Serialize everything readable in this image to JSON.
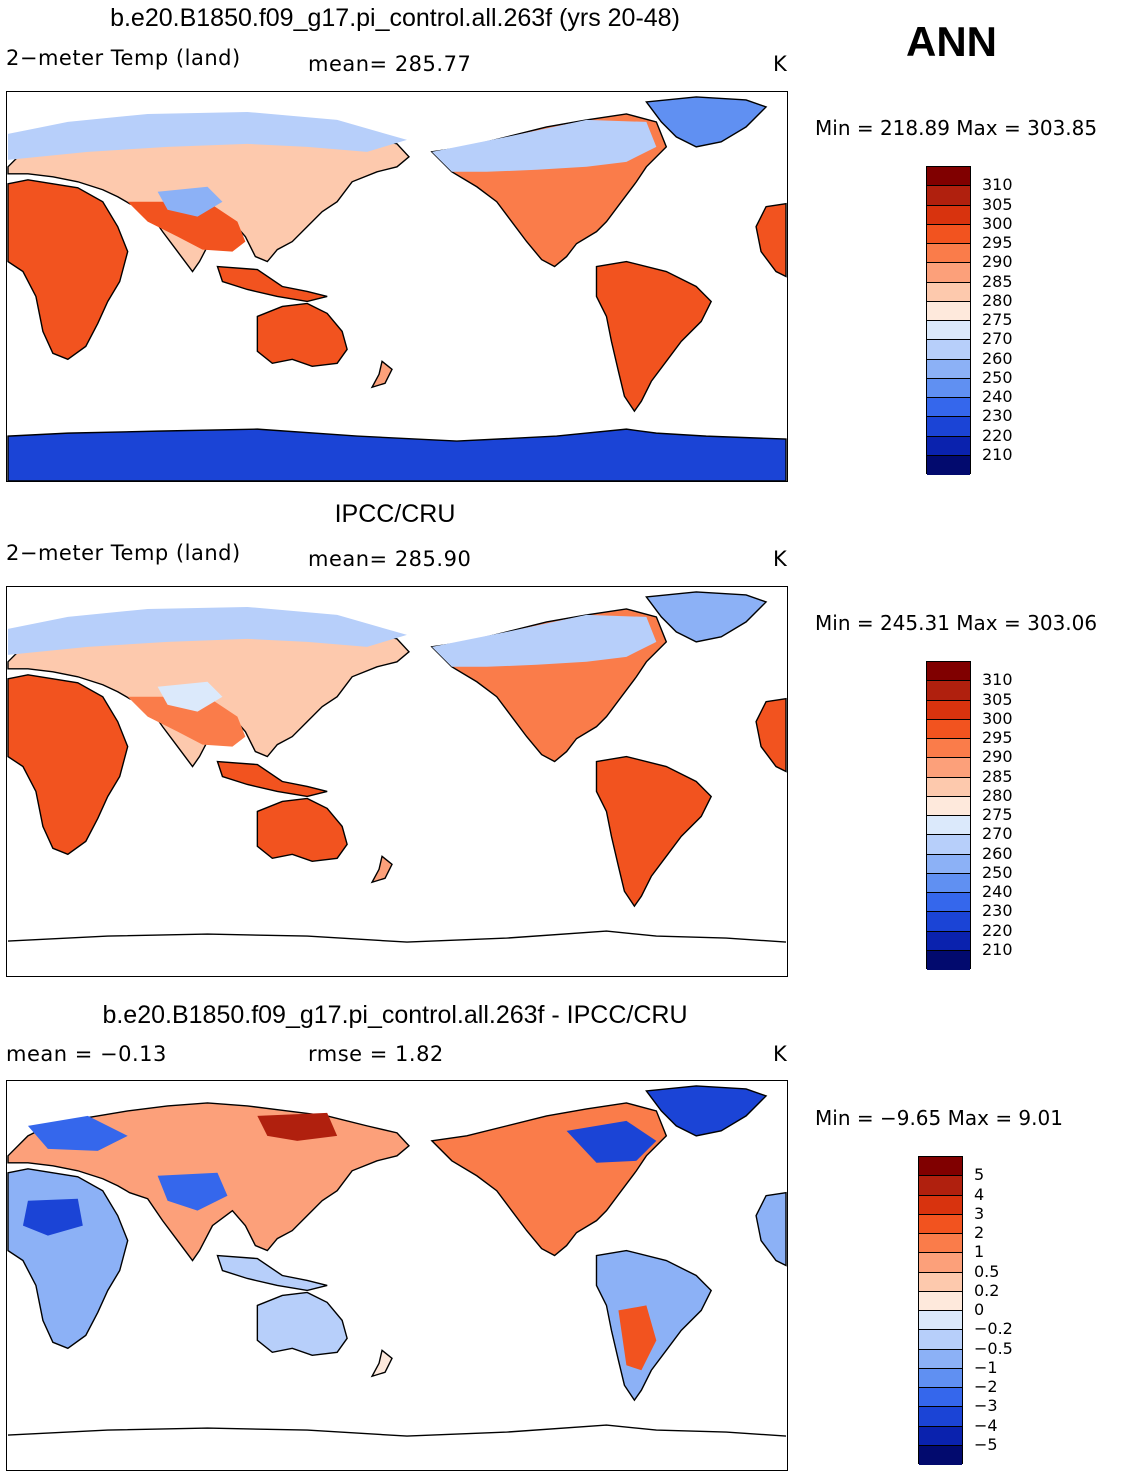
{
  "season": "ANN",
  "panels": [
    {
      "title": "b.e20.B1850.f09_g17.pi_control.all.263f (yrs 20-48)",
      "left_label": "2−meter Temp (land)",
      "center_label": "mean=  285.77",
      "units": "K",
      "minmax": "Min  =  218.89  Max  =  303.85",
      "colorbar": {
        "labels": [
          "310",
          "305",
          "300",
          "295",
          "290",
          "285",
          "280",
          "275",
          "270",
          "260",
          "250",
          "240",
          "230",
          "220",
          "210"
        ],
        "colors": [
          "#800000",
          "#b0200e",
          "#d8330e",
          "#f2531f",
          "#fa7c4a",
          "#fca07a",
          "#fdc9ad",
          "#fee9dc",
          "#dbe9fb",
          "#b7cffa",
          "#8cb1f6",
          "#6090f2",
          "#3567ec",
          "#1b44d6",
          "#0a22ae",
          "#020a6e"
        ]
      }
    },
    {
      "title": "IPCC/CRU",
      "left_label": "2−meter Temp (land)",
      "center_label": "mean=  285.90",
      "units": "K",
      "minmax": "Min  =  245.31  Max  =  303.06",
      "colorbar": {
        "labels": [
          "310",
          "305",
          "300",
          "295",
          "290",
          "285",
          "280",
          "275",
          "270",
          "260",
          "250",
          "240",
          "230",
          "220",
          "210"
        ],
        "colors": [
          "#800000",
          "#b0200e",
          "#d8330e",
          "#f2531f",
          "#fa7c4a",
          "#fca07a",
          "#fdc9ad",
          "#fee9dc",
          "#dbe9fb",
          "#b7cffa",
          "#8cb1f6",
          "#6090f2",
          "#3567ec",
          "#1b44d6",
          "#0a22ae",
          "#020a6e"
        ]
      }
    },
    {
      "title": "b.e20.B1850.f09_g17.pi_control.all.263f - IPCC/CRU",
      "left_label": "mean =   −0.13",
      "center_label": "rmse =     1.82",
      "units": "K",
      "minmax": "Min  =   −9.65  Max  =     9.01",
      "colorbar": {
        "labels": [
          "5",
          "4",
          "3",
          "2",
          "1",
          "0.5",
          "0.2",
          "0",
          "−0.2",
          "−0.5",
          "−1",
          "−2",
          "−3",
          "−4",
          "−5"
        ],
        "colors": [
          "#800000",
          "#b0200e",
          "#d8330e",
          "#f2531f",
          "#fa7c4a",
          "#fca07a",
          "#fdc9ad",
          "#fee9dc",
          "#dbe9fb",
          "#b7cffa",
          "#8cb1f6",
          "#6090f2",
          "#3567ec",
          "#1b44d6",
          "#0a22ae",
          "#020a6e"
        ]
      }
    }
  ]
}
